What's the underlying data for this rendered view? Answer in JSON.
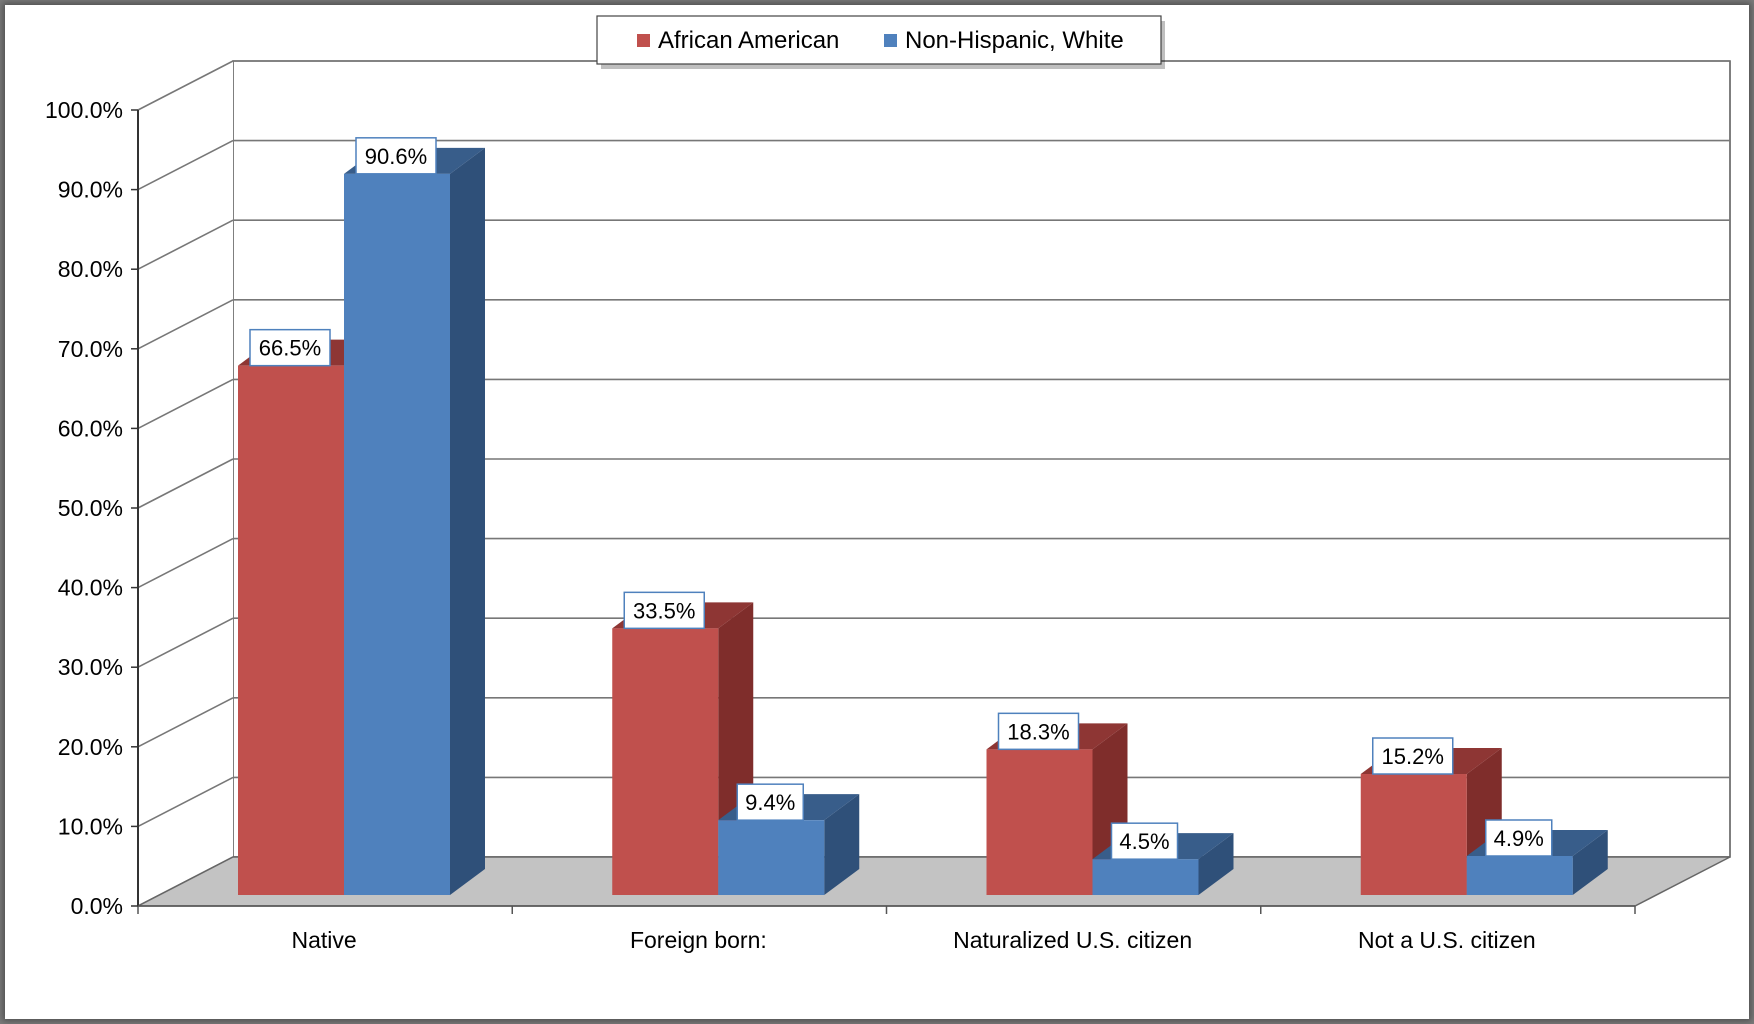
{
  "chart_data": {
    "type": "bar",
    "title": "",
    "xlabel": "",
    "ylabel": "",
    "ylim": [
      0,
      100
    ],
    "y_tick_format": "percent_1dp",
    "y_ticks": [
      "0.0%",
      "10.0%",
      "20.0%",
      "30.0%",
      "40.0%",
      "50.0%",
      "60.0%",
      "70.0%",
      "80.0%",
      "90.0%",
      "100.0%"
    ],
    "categories": [
      "Native",
      "Foreign born:",
      "Naturalized U.S. citizen",
      "Not a U.S. citizen"
    ],
    "series": [
      {
        "name": "African American",
        "values": [
          66.5,
          33.5,
          18.3,
          15.2
        ],
        "labels": [
          "66.5%",
          "33.5%",
          "18.3%",
          "15.2%"
        ],
        "color": "#c0504d",
        "side_color": "#7f2d2b",
        "top_color": "#8e3634"
      },
      {
        "name": "Non-Hispanic, White",
        "values": [
          90.6,
          9.4,
          4.5,
          4.9
        ],
        "labels": [
          "90.6%",
          "9.4%",
          "4.5%",
          "4.9%"
        ],
        "color": "#4f81bd",
        "side_color": "#2f5079",
        "top_color": "#385d8a"
      }
    ],
    "legend_position": "top",
    "grid": true,
    "style": "3d-clustered-column"
  }
}
